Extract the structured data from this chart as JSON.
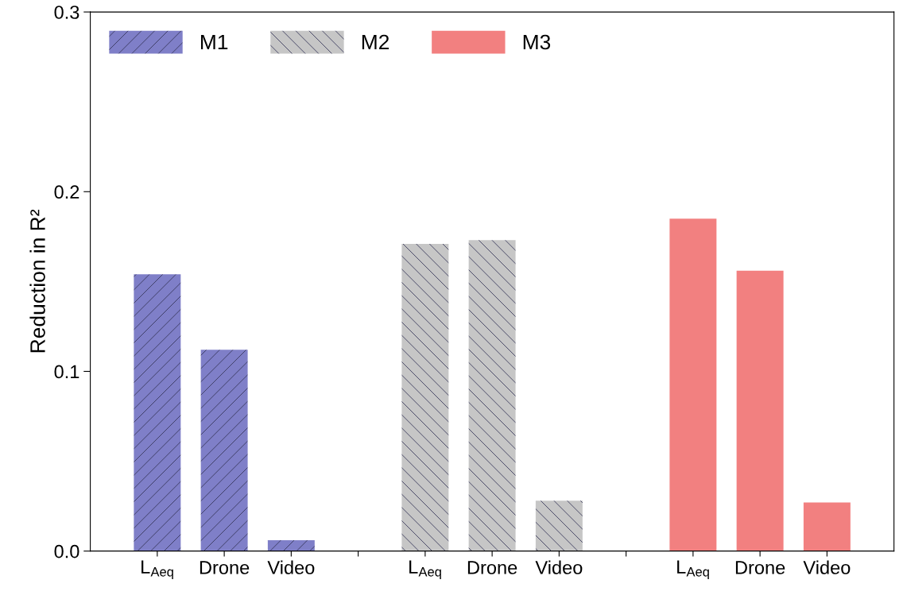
{
  "chart_data": {
    "type": "bar",
    "ylabel": "Reduction in R²",
    "categories": [
      "L$_{Aeq}$",
      "Drone",
      "Video",
      null,
      "L$_{Aeq}$",
      "Drone",
      "Video",
      null,
      "L$_{Aeq}$",
      "Drone",
      "Video"
    ],
    "series": [
      {
        "name": "M1",
        "color": "#7f7fc8",
        "values": [
          0.154,
          0.112,
          0.006,
          null,
          null,
          null,
          null,
          null,
          null,
          null,
          null
        ]
      },
      {
        "name": "M2",
        "color": "#c6c6c6",
        "values": [
          null,
          null,
          null,
          null,
          0.171,
          0.173,
          0.028,
          null,
          null,
          null,
          null
        ]
      },
      {
        "name": "M3",
        "color": "#f28080",
        "values": [
          null,
          null,
          null,
          null,
          null,
          null,
          null,
          null,
          0.185,
          0.156,
          0.027
        ]
      }
    ],
    "ylim": [
      0,
      0.3
    ],
    "yticks": [
      {
        "value": 0,
        "label": "0.0"
      },
      0.1,
      0.2,
      0.3
    ],
    "grid": false,
    "legend": "top left"
  }
}
